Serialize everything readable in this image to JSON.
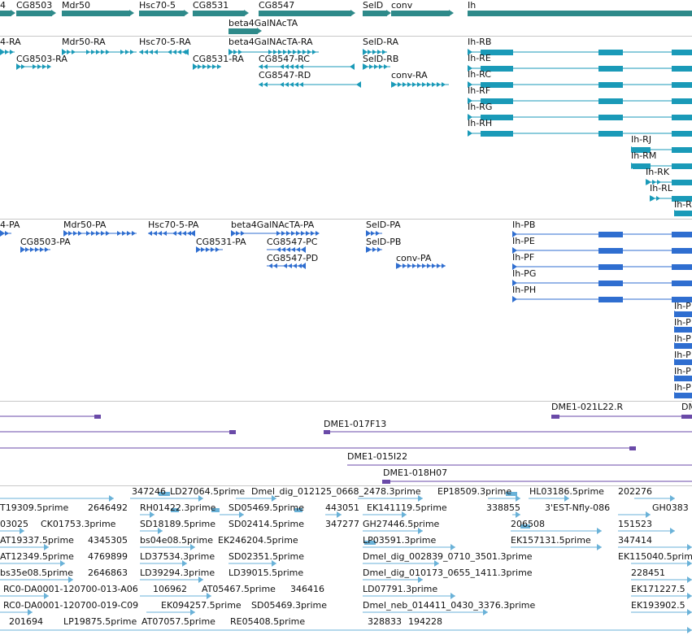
{
  "colors": {
    "gene": "#2e8a8a",
    "transcript": "#1a9ab8",
    "protein": "#2f6ed0",
    "clone": "#6a4aa8",
    "est": "#6ab2d8",
    "separator": "#c8c8c8"
  },
  "genes": [
    {
      "label": "4"
    },
    {
      "label": "CG8503"
    },
    {
      "label": "Mdr50"
    },
    {
      "label": "Hsc70-5"
    },
    {
      "label": "CG8531"
    },
    {
      "label": "CG8547"
    },
    {
      "label": "beta4GalNAcTA"
    },
    {
      "label": "SelD"
    },
    {
      "label": "conv"
    },
    {
      "label": "Ih"
    }
  ],
  "transcripts": [
    {
      "label": "4-RA"
    },
    {
      "label": "CG8503-RA"
    },
    {
      "label": "Mdr50-RA"
    },
    {
      "label": "Hsc70-5-RA"
    },
    {
      "label": "CG8531-RA"
    },
    {
      "label": "beta4GalNAcTA-RA"
    },
    {
      "label": "CG8547-RC"
    },
    {
      "label": "CG8547-RD"
    },
    {
      "label": "SelD-RA"
    },
    {
      "label": "SelD-RB"
    },
    {
      "label": "conv-RA"
    },
    {
      "label": "Ih-RB"
    },
    {
      "label": "Ih-RE"
    },
    {
      "label": "Ih-RC"
    },
    {
      "label": "Ih-RF"
    },
    {
      "label": "Ih-RG"
    },
    {
      "label": "Ih-RH"
    },
    {
      "label": "Ih-RJ"
    },
    {
      "label": "Ih-RM"
    },
    {
      "label": "Ih-RK"
    },
    {
      "label": "Ih-RL"
    },
    {
      "label": "Ih-R"
    }
  ],
  "proteins": [
    {
      "label": "4-PA"
    },
    {
      "label": "CG8503-PA"
    },
    {
      "label": "Mdr50-PA"
    },
    {
      "label": "Hsc70-5-PA"
    },
    {
      "label": "CG8531-PA"
    },
    {
      "label": "beta4GalNAcTA-PA"
    },
    {
      "label": "CG8547-PC"
    },
    {
      "label": "CG8547-PD"
    },
    {
      "label": "SelD-PA"
    },
    {
      "label": "SelD-PB"
    },
    {
      "label": "conv-PA"
    },
    {
      "label": "Ih-PB"
    },
    {
      "label": "Ih-PE"
    },
    {
      "label": "Ih-PF"
    },
    {
      "label": "Ih-PG"
    },
    {
      "label": "Ih-PH"
    },
    {
      "label": "Ih-P"
    },
    {
      "label": "Ih-P"
    },
    {
      "label": "Ih-P"
    },
    {
      "label": "Ih-P"
    },
    {
      "label": "Ih-P"
    },
    {
      "label": "Ih-P"
    }
  ],
  "clones": [
    {
      "label": "DME1-021L22.R"
    },
    {
      "label": "DM"
    },
    {
      "label": "DME1-017F13"
    },
    {
      "label": "DME1-015I22"
    },
    {
      "label": "DME1-018H07"
    }
  ],
  "ests": [
    {
      "label": "347246"
    },
    {
      "label": "LD27064.5prime"
    },
    {
      "label": "Dmel_dig_012125_0668_2478.3prime"
    },
    {
      "label": "EP18509.3prime"
    },
    {
      "label": "HL03186.5prime"
    },
    {
      "label": "202276"
    },
    {
      "label": "T19309.5prime"
    },
    {
      "label": "2646492"
    },
    {
      "label": "RH01422.3prime"
    },
    {
      "label": "SD05469.5prime"
    },
    {
      "label": "443051"
    },
    {
      "label": "EK141119.5prime"
    },
    {
      "label": "338855"
    },
    {
      "label": "3'EST-Nfly-086"
    },
    {
      "label": "GH0383"
    },
    {
      "label": "03025"
    },
    {
      "label": "CK01753.3prime"
    },
    {
      "label": "SD18189.5prime"
    },
    {
      "label": "SD02414.5prime"
    },
    {
      "label": "347277"
    },
    {
      "label": "GH27446.5prime"
    },
    {
      "label": "206508"
    },
    {
      "label": "151523"
    },
    {
      "label": "AT19337.5prime"
    },
    {
      "label": "4345305"
    },
    {
      "label": "bs04e08.5prime"
    },
    {
      "label": "EK246204.5prime"
    },
    {
      "label": "LP03591.3prime"
    },
    {
      "label": "EK157131.5prime"
    },
    {
      "label": "347414"
    },
    {
      "label": "AT12349.5prime"
    },
    {
      "label": "4769899"
    },
    {
      "label": "LD37534.3prime"
    },
    {
      "label": "SD02351.5prime"
    },
    {
      "label": "Dmel_dig_002839_0710_3501.3prime"
    },
    {
      "label": "EK115040.5prime"
    },
    {
      "label": "bs35e08.5prime"
    },
    {
      "label": "2646863"
    },
    {
      "label": "LD39294.3prime"
    },
    {
      "label": "LD39015.5prime"
    },
    {
      "label": "Dmel_dig_010173_0655_1411.3prime"
    },
    {
      "label": "228451"
    },
    {
      "label": "RC0-DA0001-120700-013-A06"
    },
    {
      "label": "106962"
    },
    {
      "label": "AT05467.5prime"
    },
    {
      "label": "346416"
    },
    {
      "label": "LD07791.3prime"
    },
    {
      "label": "EK171227.5"
    },
    {
      "label": "RC0-DA0001-120700-019-C09"
    },
    {
      "label": "EK094257.5prime"
    },
    {
      "label": "SD05469.3prime"
    },
    {
      "label": "Dmel_neb_014411_0430_3376.3prime"
    },
    {
      "label": "EK193902.5"
    },
    {
      "label": "201694"
    },
    {
      "label": "LP19875.5prime"
    },
    {
      "label": "AT07057.5prime"
    },
    {
      "label": "RE05408.5prime"
    },
    {
      "label": "328833"
    },
    {
      "label": "194228"
    }
  ]
}
